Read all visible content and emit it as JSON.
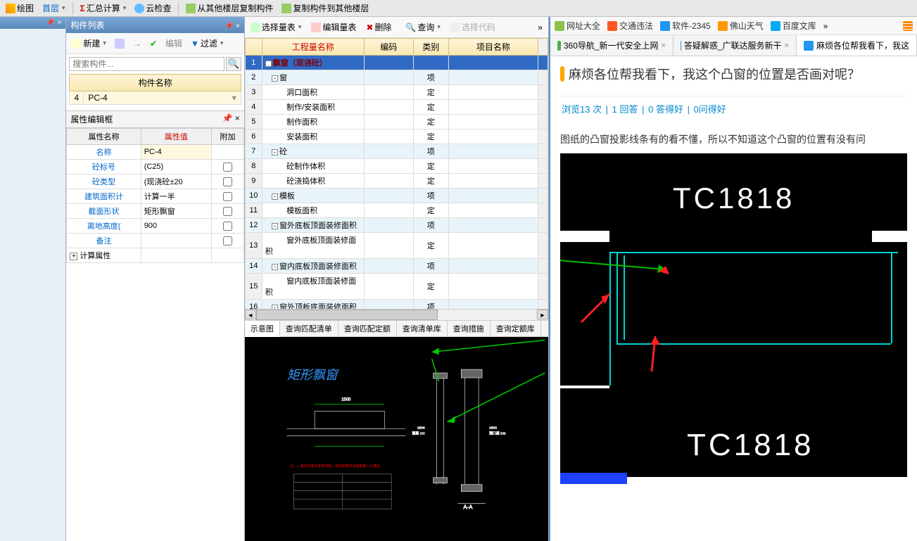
{
  "top_toolbar": {
    "draw": "绘图",
    "first_floor": "首层",
    "sum_calc": "汇总计算",
    "cloud_check": "云检查",
    "copy_from": "从其他楼层复制构件",
    "copy_to": "复制构件到其他楼层"
  },
  "component_list": {
    "title": "构件列表",
    "new_btn": "新建",
    "edit_btn": "编辑",
    "filter_btn": "过滤",
    "search_placeholder": "搜索构件...",
    "header": "构件名称",
    "rownum": "4",
    "item": "PC-4"
  },
  "property_editor": {
    "title": "属性编辑框",
    "col_name": "属性名称",
    "col_value": "属性值",
    "col_extra": "附加",
    "rows": [
      {
        "name": "名称",
        "value": "PC-4"
      },
      {
        "name": "砼标号",
        "value": "(C25)"
      },
      {
        "name": "砼类型",
        "value": "(现浇砼±20"
      },
      {
        "name": "建筑面积计",
        "value": "计算一半"
      },
      {
        "name": "截面形状",
        "value": "矩形飘窗"
      },
      {
        "name": "离地高度(",
        "value": "900"
      },
      {
        "name": "备注",
        "value": ""
      }
    ],
    "calc_attr": "计算属性"
  },
  "qty_panel": {
    "toolbar": {
      "select": "选择量表",
      "edit": "编辑量表",
      "delete": "删除",
      "query": "查询",
      "select_code": "选择代码"
    },
    "headers": {
      "name": "工程量名称",
      "code": "编码",
      "type": "类别",
      "proj": "项目名称"
    },
    "rows": [
      {
        "n": "1",
        "name": "飘窗（现浇砼）",
        "type": "",
        "level": 0,
        "toggle": "-",
        "bold": true
      },
      {
        "n": "2",
        "name": "窗",
        "type": "项",
        "level": 1,
        "toggle": "-"
      },
      {
        "n": "3",
        "name": "洞口面积",
        "type": "定",
        "level": 2
      },
      {
        "n": "4",
        "name": "制作/安装面积",
        "type": "定",
        "level": 2
      },
      {
        "n": "5",
        "name": "制作面积",
        "type": "定",
        "level": 2
      },
      {
        "n": "6",
        "name": "安装面积",
        "type": "定",
        "level": 2
      },
      {
        "n": "7",
        "name": "砼",
        "type": "项",
        "level": 1,
        "toggle": "-"
      },
      {
        "n": "8",
        "name": "砼制作体积",
        "type": "定",
        "level": 2
      },
      {
        "n": "9",
        "name": "砼浇捣体积",
        "type": "定",
        "level": 2
      },
      {
        "n": "10",
        "name": "模板",
        "type": "项",
        "level": 1,
        "toggle": "-"
      },
      {
        "n": "11",
        "name": "模板面积",
        "type": "定",
        "level": 2
      },
      {
        "n": "12",
        "name": "窗外底板顶面装修面积",
        "type": "项",
        "level": 1,
        "toggle": "-"
      },
      {
        "n": "13",
        "name": "窗外底板顶面装修面积",
        "type": "定",
        "level": 2
      },
      {
        "n": "14",
        "name": "窗内底板顶面装修面积",
        "type": "项",
        "level": 1,
        "toggle": "-"
      },
      {
        "n": "15",
        "name": "窗内底板顶面装修面积",
        "type": "定",
        "level": 2
      },
      {
        "n": "16",
        "name": "窗外顶板底面装修面积",
        "type": "项",
        "level": 1,
        "toggle": "-"
      }
    ]
  },
  "schematic": {
    "tabs": [
      "示意图",
      "查询匹配清单",
      "查询匹配定额",
      "查询清单库",
      "查询措施",
      "查询定额库"
    ],
    "title": "矩形飘窗",
    "section_label": "A-A"
  },
  "browser": {
    "bookmarks": [
      {
        "label": "网址大全",
        "color": "#8bc34a"
      },
      {
        "label": "交通违法",
        "color": "#ff5722"
      },
      {
        "label": "软件-2345",
        "color": "#2196f3"
      },
      {
        "label": "佛山天气",
        "color": "#ff9800"
      },
      {
        "label": "百度文库",
        "color": "#03a9f4"
      }
    ],
    "more": "»",
    "tabs": [
      {
        "label": "360导航_新一代安全上网",
        "color": "#4caf50",
        "close": "×"
      },
      {
        "label": "答疑解惑_广联达服务新干",
        "color": "#2196f3",
        "close": "×"
      },
      {
        "label": "麻烦各位帮我看下，我这",
        "color": "#2196f3",
        "close": ""
      }
    ],
    "question": {
      "title": "麻烦各位帮我看下，我这个凸窗的位置是否画对呢？",
      "stats_views": "浏览13 次",
      "stats_answers": "1 回答",
      "stats_good": "0 答得好",
      "stats_askgood": "0问得好",
      "body": "图纸的凸窗投影线条有的看不懂，所以不知道这个凸窗的位置有没有问"
    },
    "cad_label1": "TC1818",
    "cad_label2": "TC1818"
  }
}
